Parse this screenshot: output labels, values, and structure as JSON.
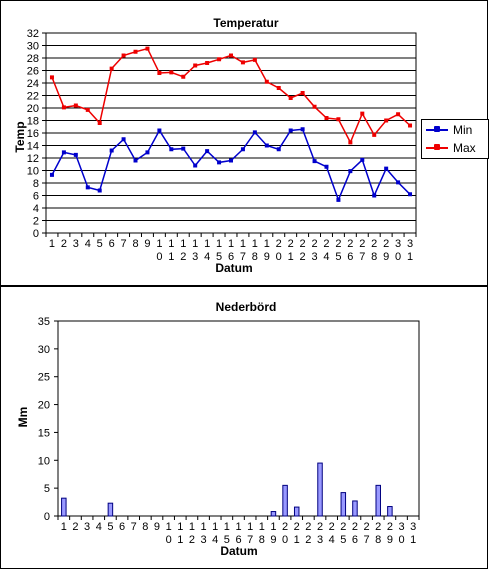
{
  "colors": {
    "min": "#0000cc",
    "max": "#ee0000",
    "bar_fill": "#9999ff",
    "bar_stroke": "#000080",
    "grid": "#000000"
  },
  "chart_data": [
    {
      "type": "line",
      "title": "Temperatur",
      "xlabel": "Datum",
      "ylabel": "Temp",
      "ylim": [
        0,
        32
      ],
      "ystep": 2,
      "grid": true,
      "legend_position": "right",
      "x": [
        1,
        2,
        3,
        4,
        5,
        6,
        7,
        8,
        9,
        10,
        11,
        12,
        13,
        14,
        15,
        16,
        17,
        18,
        19,
        20,
        21,
        22,
        23,
        24,
        25,
        26,
        27,
        28,
        29,
        30,
        31
      ],
      "series": [
        {
          "name": "Min",
          "values": [
            9.3,
            12.9,
            12.5,
            7.3,
            6.8,
            13.2,
            15.0,
            11.6,
            12.9,
            16.4,
            13.4,
            13.5,
            10.8,
            13.1,
            11.3,
            11.6,
            13.4,
            16.1,
            14.0,
            13.4,
            16.4,
            16.6,
            11.5,
            10.6,
            5.3,
            9.9,
            11.7,
            6.0,
            10.3,
            8.1,
            6.2
          ]
        },
        {
          "name": "Max",
          "values": [
            24.9,
            20.1,
            20.4,
            19.7,
            17.6,
            26.3,
            28.4,
            29.0,
            29.5,
            25.6,
            25.7,
            25.0,
            26.8,
            27.2,
            27.8,
            28.4,
            27.3,
            27.7,
            24.2,
            23.2,
            21.6,
            22.4,
            20.2,
            18.4,
            18.2,
            14.5,
            19.1,
            15.7,
            18.0,
            19.0,
            17.2
          ]
        }
      ]
    },
    {
      "type": "bar",
      "title": "Nederbörd",
      "xlabel": "Datum",
      "ylabel": "Mm",
      "ylim": [
        0,
        35
      ],
      "ystep": 5,
      "grid": false,
      "x": [
        1,
        2,
        3,
        4,
        5,
        6,
        7,
        8,
        9,
        10,
        11,
        12,
        13,
        14,
        15,
        16,
        17,
        18,
        19,
        20,
        21,
        22,
        23,
        24,
        25,
        26,
        27,
        28,
        29,
        30,
        31
      ],
      "values": [
        3.2,
        0,
        0,
        0,
        2.3,
        0,
        0,
        0,
        0,
        0,
        0,
        0,
        0,
        0,
        0,
        0,
        0,
        0,
        0.8,
        5.5,
        1.6,
        0,
        9.5,
        0,
        4.2,
        2.7,
        0,
        5.5,
        1.7,
        0,
        0
      ]
    }
  ]
}
